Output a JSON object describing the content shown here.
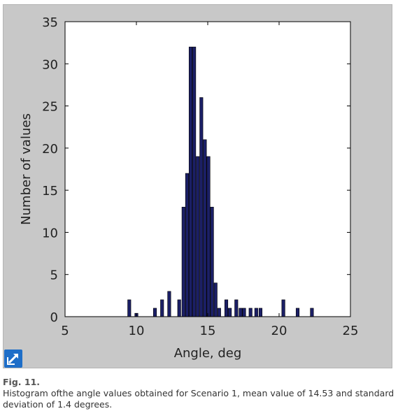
{
  "chart_data": {
    "type": "bar",
    "x": [
      9.5,
      10.0,
      11.3,
      11.8,
      12.3,
      13.0,
      13.3,
      13.55,
      13.8,
      14.05,
      14.3,
      14.55,
      14.8,
      15.05,
      15.3,
      15.55,
      15.8,
      16.3,
      16.55,
      17.0,
      17.3,
      17.55,
      18.0,
      18.4,
      18.7,
      20.3,
      21.3,
      22.3
    ],
    "values": [
      2,
      0.4,
      1,
      2,
      3,
      2,
      13,
      17,
      32,
      32,
      19,
      26,
      21,
      19,
      13,
      4,
      1,
      2,
      1,
      2,
      1,
      1,
      1,
      1,
      1,
      2,
      1,
      1
    ],
    "xlabel": "Angle, deg",
    "ylabel": "Number of values",
    "xlim": [
      5,
      25
    ],
    "ylim": [
      0,
      35
    ],
    "xticks": [
      5,
      10,
      15,
      20,
      25
    ],
    "yticks": [
      0,
      5,
      10,
      15,
      20,
      25,
      30,
      35
    ],
    "grid": false,
    "bar_color": "#1b1f66"
  },
  "figure": {
    "label": "Fig. 11.",
    "caption": "Histogram ofthe angle values obtained for Scenario 1, mean value of 14.53 and standard deviation of 1.4 degrees.",
    "expand_icon": "expand-arrow-icon"
  }
}
